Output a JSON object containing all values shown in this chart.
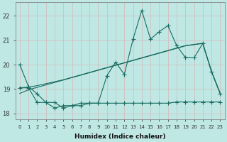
{
  "background_color": "#bfe8e5",
  "grid_color": "#d8f0ee",
  "line_color": "#1a6b60",
  "xlabel": "Humidex (Indice chaleur)",
  "xlim": [
    -0.5,
    23.5
  ],
  "ylim": [
    17.75,
    22.55
  ],
  "yticks": [
    18,
    19,
    20,
    21,
    22
  ],
  "xticks": [
    0,
    1,
    2,
    3,
    4,
    5,
    6,
    7,
    8,
    9,
    10,
    11,
    12,
    13,
    14,
    15,
    16,
    17,
    18,
    19,
    20,
    21,
    22,
    23
  ],
  "s1_x": [
    0,
    1,
    2,
    3,
    4,
    5,
    6,
    7,
    8,
    9,
    10,
    11,
    12,
    13,
    14,
    15,
    16,
    17,
    18,
    19,
    20,
    21,
    22,
    23
  ],
  "s1_y": [
    20.0,
    19.1,
    18.8,
    18.45,
    18.45,
    18.22,
    18.32,
    18.32,
    18.42,
    18.42,
    19.55,
    20.1,
    19.6,
    21.05,
    22.22,
    21.05,
    21.35,
    21.6,
    20.78,
    20.3,
    20.28,
    20.87,
    19.72,
    18.82
  ],
  "s2_x": [
    0,
    1,
    2,
    3,
    4,
    5,
    6,
    7,
    8,
    9,
    10,
    11,
    12,
    13,
    14,
    15,
    16,
    17,
    18,
    19,
    20,
    21,
    22,
    23
  ],
  "s2_y": [
    18.82,
    18.97,
    19.07,
    19.17,
    19.27,
    19.37,
    19.47,
    19.57,
    19.67,
    19.77,
    19.87,
    19.97,
    20.07,
    20.17,
    20.27,
    20.37,
    20.47,
    20.57,
    20.67,
    20.77,
    20.82,
    20.87,
    19.72,
    18.82
  ],
  "s3_x": [
    0,
    1,
    2,
    3,
    4,
    5,
    6,
    7,
    8,
    9,
    10,
    11,
    12,
    13,
    14,
    15,
    16,
    17,
    18,
    19,
    20,
    21,
    22,
    23
  ],
  "s3_y": [
    19.05,
    19.08,
    19.14,
    19.22,
    19.3,
    19.38,
    19.48,
    19.58,
    19.68,
    19.78,
    19.88,
    19.98,
    20.08,
    20.18,
    20.28,
    20.38,
    20.48,
    20.58,
    20.68,
    20.78,
    20.83,
    20.88,
    19.72,
    18.82
  ],
  "s4_x": [
    0,
    1,
    2,
    3,
    4,
    5,
    6,
    7,
    8,
    9,
    10,
    11,
    12,
    13,
    14,
    15,
    16,
    17,
    18,
    19,
    20,
    21,
    22,
    23
  ],
  "s4_y": [
    19.05,
    19.05,
    18.45,
    18.45,
    18.22,
    18.32,
    18.32,
    18.42,
    18.42,
    18.42,
    18.42,
    18.42,
    18.42,
    18.42,
    18.42,
    18.42,
    18.42,
    18.42,
    18.47,
    18.47,
    18.47,
    18.47,
    18.47,
    18.47
  ]
}
